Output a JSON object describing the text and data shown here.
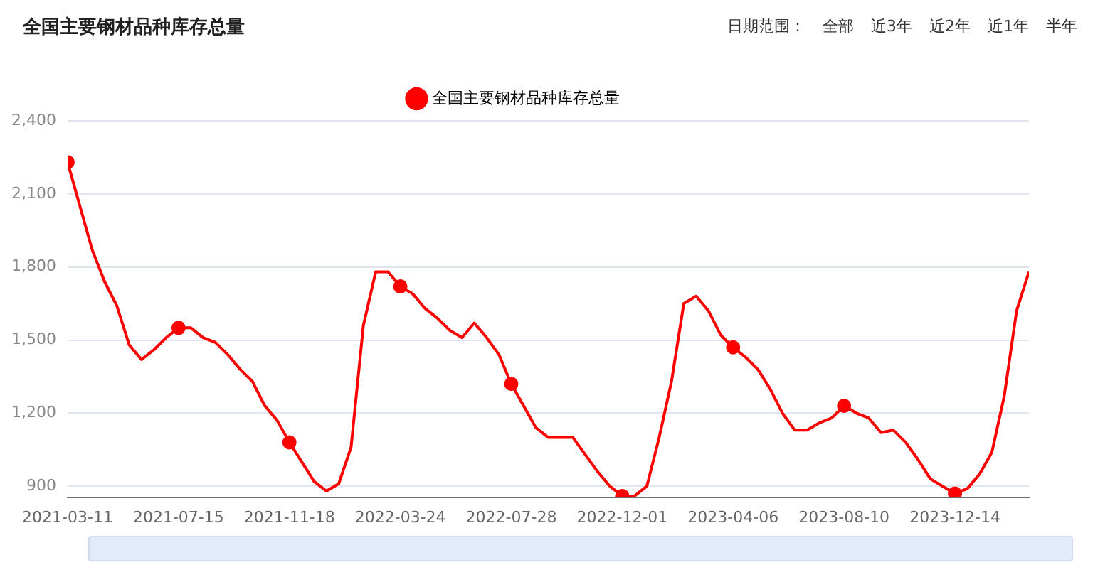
{
  "chart_data": {
    "type": "line",
    "title": "全国主要钢材品种库存总量",
    "annotations": [
      "日期范围：",
      "全部",
      "近3年",
      "近2年",
      "近1年",
      "半年"
    ],
    "x": [
      "2021-03-11",
      "2021-03-25",
      "2021-04-08",
      "2021-04-22",
      "2021-05-06",
      "2021-05-20",
      "2021-06-03",
      "2021-06-17",
      "2021-07-01",
      "2021-07-15",
      "2021-07-29",
      "2021-08-12",
      "2021-08-26",
      "2021-09-09",
      "2021-09-23",
      "2021-10-07",
      "2021-10-21",
      "2021-11-04",
      "2021-11-18",
      "2021-12-02",
      "2021-12-16",
      "2021-12-30",
      "2022-01-13",
      "2022-01-27",
      "2022-02-10",
      "2022-02-24",
      "2022-03-10",
      "2022-03-24",
      "2022-04-07",
      "2022-04-21",
      "2022-05-05",
      "2022-05-19",
      "2022-06-02",
      "2022-06-16",
      "2022-06-30",
      "2022-07-14",
      "2022-07-28",
      "2022-08-11",
      "2022-08-25",
      "2022-09-08",
      "2022-09-22",
      "2022-10-06",
      "2022-10-20",
      "2022-11-03",
      "2022-11-17",
      "2022-12-01",
      "2022-12-15",
      "2022-12-29",
      "2023-01-12",
      "2023-01-26",
      "2023-02-09",
      "2023-02-23",
      "2023-03-09",
      "2023-03-23",
      "2023-04-06",
      "2023-04-20",
      "2023-05-04",
      "2023-05-18",
      "2023-06-01",
      "2023-06-15",
      "2023-06-29",
      "2023-07-13",
      "2023-07-27",
      "2023-08-10",
      "2023-08-24",
      "2023-09-07",
      "2023-09-21",
      "2023-10-05",
      "2023-10-19",
      "2023-11-02",
      "2023-11-16",
      "2023-11-30",
      "2023-12-14",
      "2023-12-28",
      "2024-01-11",
      "2024-01-25",
      "2024-02-08",
      "2024-02-22",
      "2024-03-07"
    ],
    "series": [
      {
        "type": "scatter",
        "color": "#ff0000",
        "x": [
          "2021-03-11",
          "2021-07-15",
          "2021-11-18",
          "2022-03-24",
          "2022-07-28",
          "2022-12-01",
          "2023-04-06",
          "2023-08-10",
          "2023-12-14"
        ],
        "values": [
          2230,
          1550,
          1080,
          1720,
          1320,
          860,
          1470,
          1230,
          870
        ]
      },
      {
        "name": "全国主要钢材品种库存总量",
        "color": "#ff0000",
        "marker": "none",
        "values": [
          2230,
          2050,
          1870,
          1740,
          1640,
          1480,
          1420,
          1460,
          1510,
          1550,
          1550,
          1510,
          1490,
          1440,
          1380,
          1330,
          1230,
          1170,
          1080,
          1000,
          920,
          880,
          910,
          1060,
          1560,
          1780,
          1780,
          1720,
          1690,
          1630,
          1590,
          1540,
          1510,
          1570,
          1510,
          1440,
          1320,
          1230,
          1140,
          1100,
          1100,
          1100,
          1030,
          960,
          900,
          860,
          860,
          900,
          1100,
          1330,
          1650,
          1680,
          1620,
          1520,
          1470,
          1430,
          1380,
          1300,
          1200,
          1130,
          1130,
          1160,
          1180,
          1230,
          1200,
          1180,
          1120,
          1130,
          1080,
          1010,
          930,
          900,
          870,
          890,
          950,
          1040,
          1270,
          1620,
          1780
        ]
      }
    ],
    "xlim": [
      "2021-03-11",
      "2024-03-07"
    ],
    "xticks": [
      "2021-03-11",
      "2021-07-15",
      "2021-11-18",
      "2022-03-24",
      "2022-07-28",
      "2022-12-01",
      "2023-04-06",
      "2023-08-10",
      "2023-12-14"
    ],
    "ylim": [
      855,
      2400
    ],
    "yticks": [
      {
        "value": 900,
        "label": "900"
      },
      {
        "value": 1200,
        "label": "1,200"
      },
      {
        "value": 1500,
        "label": "1,500"
      },
      {
        "value": 1800,
        "label": "1,800"
      },
      {
        "value": 2100,
        "label": "2,100"
      },
      {
        "value": 2400,
        "label": "2,400"
      }
    ],
    "grid": "y",
    "legend": "top",
    "marker": "circle",
    "line_style": "solid"
  }
}
